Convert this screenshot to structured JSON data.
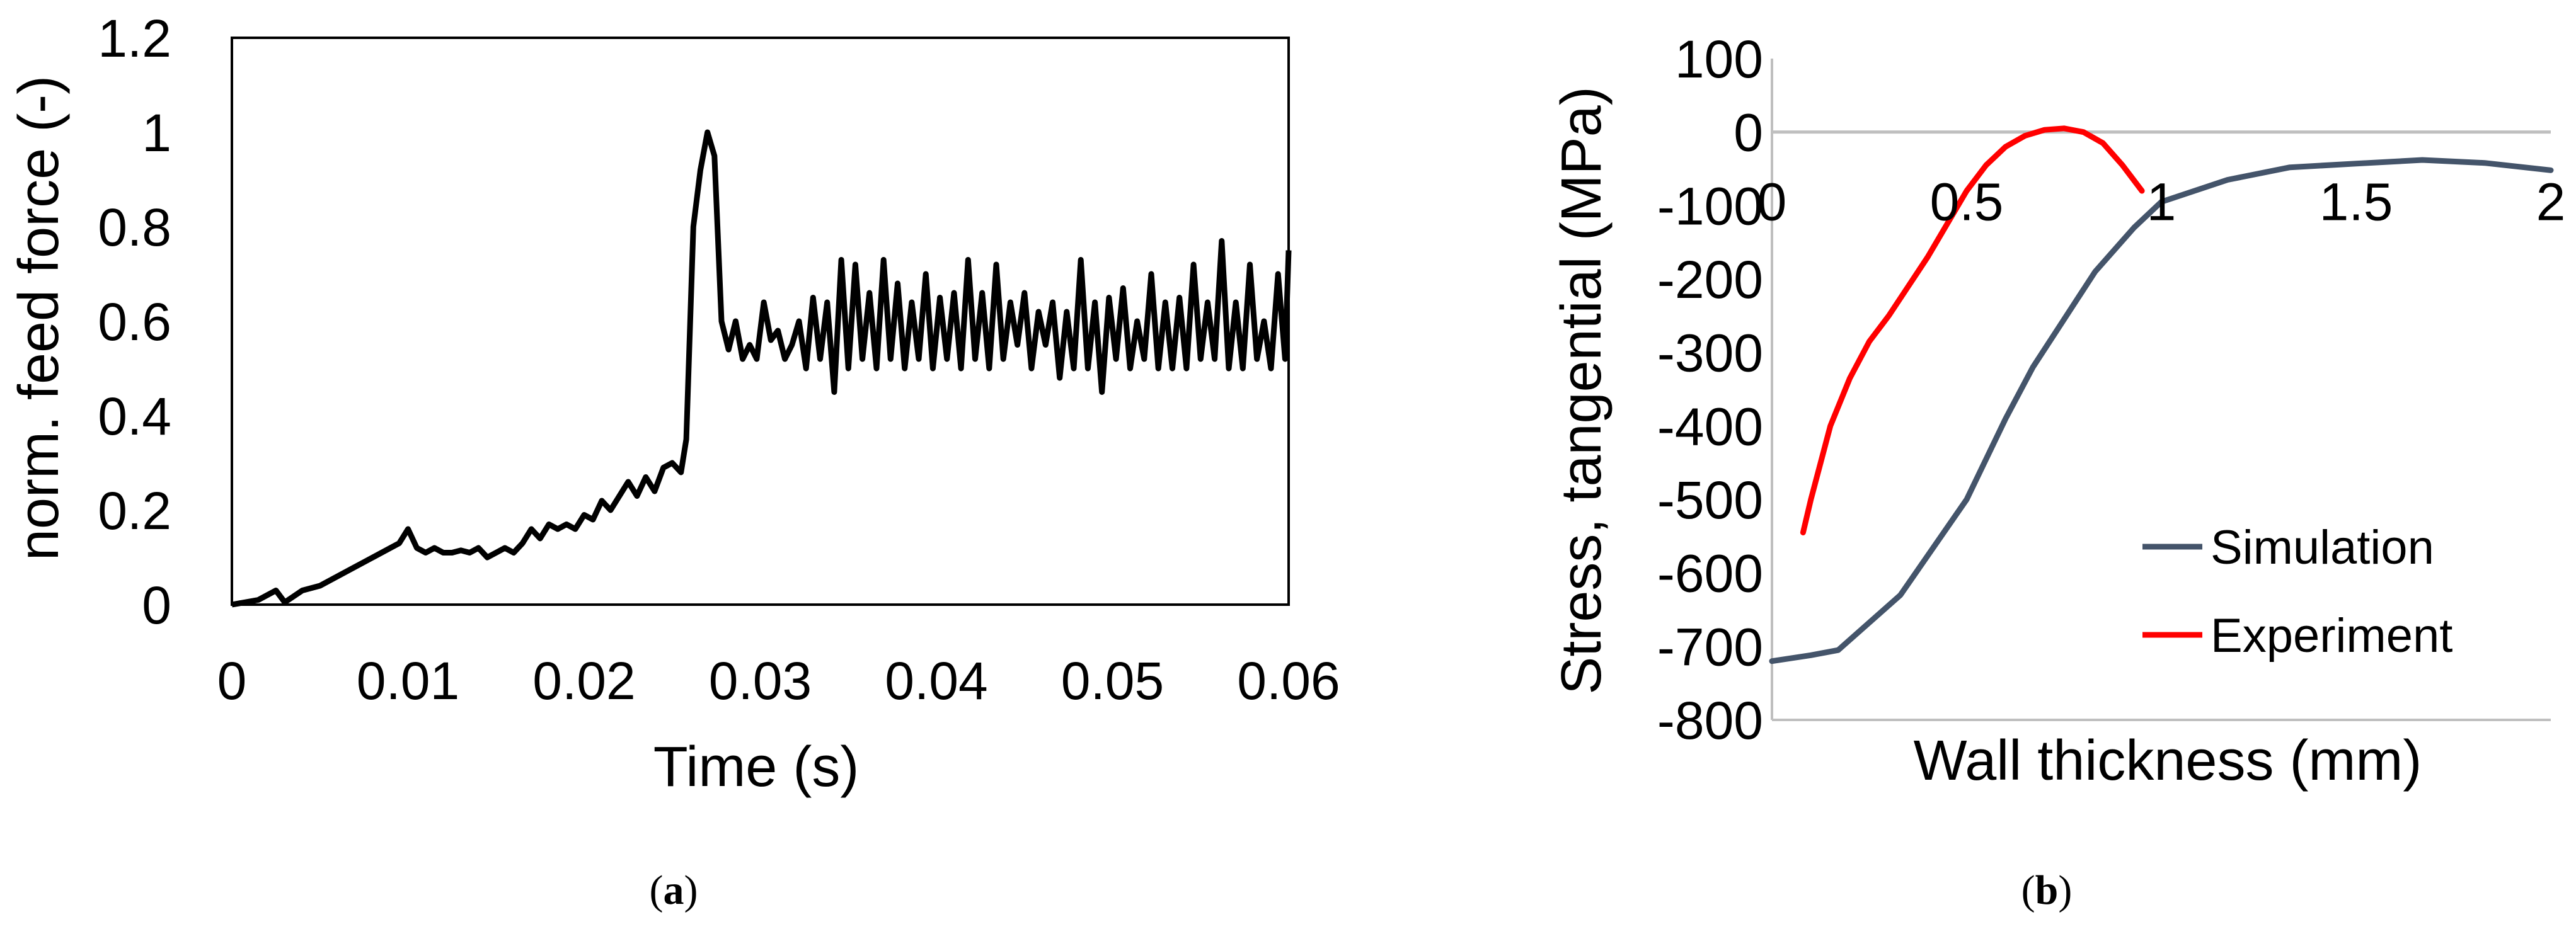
{
  "chart_data": [
    {
      "id": "a",
      "type": "line",
      "caption_open": "(",
      "caption_letter": "a",
      "caption_close": ")",
      "xlabel": "Time (s)",
      "ylabel": "norm. feed force (-)",
      "xlim": [
        0,
        0.06
      ],
      "ylim": [
        0,
        1.2
      ],
      "xticks": [
        "0",
        "0.01",
        "0.02",
        "0.03",
        "0.04",
        "0.05",
        "0.06"
      ],
      "yticks": [
        "0",
        "0.2",
        "0.4",
        "0.6",
        "0.8",
        "1",
        "1.2"
      ],
      "series": [
        {
          "color": "#000000",
          "x": [
            0,
            0.0015,
            0.0025,
            0.003,
            0.004,
            0.005,
            0.006,
            0.007,
            0.008,
            0.009,
            0.0095,
            0.01,
            0.0105,
            0.011,
            0.0115,
            0.012,
            0.0125,
            0.013,
            0.0135,
            0.014,
            0.0145,
            0.015,
            0.0155,
            0.016,
            0.0165,
            0.017,
            0.0175,
            0.018,
            0.0185,
            0.019,
            0.0195,
            0.02,
            0.0205,
            0.021,
            0.0215,
            0.022,
            0.0225,
            0.023,
            0.0235,
            0.024,
            0.0245,
            0.025,
            0.0255,
            0.0258,
            0.0262,
            0.0266,
            0.027,
            0.0274,
            0.0278,
            0.0282,
            0.0286,
            0.029,
            0.0294,
            0.0298,
            0.0302,
            0.0306,
            0.031,
            0.0314,
            0.0318,
            0.0322,
            0.0326,
            0.033,
            0.0334,
            0.0338,
            0.0342,
            0.0346,
            0.035,
            0.0354,
            0.0358,
            0.0362,
            0.0366,
            0.037,
            0.0374,
            0.0378,
            0.0382,
            0.0386,
            0.039,
            0.0394,
            0.0398,
            0.0402,
            0.0406,
            0.041,
            0.0414,
            0.0418,
            0.0422,
            0.0426,
            0.043,
            0.0434,
            0.0438,
            0.0442,
            0.0446,
            0.045,
            0.0454,
            0.0458,
            0.0462,
            0.0466,
            0.047,
            0.0474,
            0.0478,
            0.0482,
            0.0486,
            0.049,
            0.0494,
            0.0498,
            0.0502,
            0.0506,
            0.051,
            0.0514,
            0.0518,
            0.0522,
            0.0526,
            0.053,
            0.0534,
            0.0538,
            0.0542,
            0.0546,
            0.055,
            0.0554,
            0.0558,
            0.0562,
            0.0566,
            0.057,
            0.0574,
            0.0578,
            0.0582,
            0.0586,
            0.059,
            0.0594,
            0.0598,
            0.06
          ],
          "y": [
            0,
            0.01,
            0.03,
            0.005,
            0.03,
            0.04,
            0.06,
            0.08,
            0.1,
            0.12,
            0.13,
            0.16,
            0.12,
            0.11,
            0.12,
            0.11,
            0.11,
            0.115,
            0.11,
            0.12,
            0.1,
            0.11,
            0.12,
            0.11,
            0.13,
            0.16,
            0.14,
            0.17,
            0.16,
            0.17,
            0.16,
            0.19,
            0.18,
            0.22,
            0.2,
            0.23,
            0.26,
            0.23,
            0.27,
            0.24,
            0.29,
            0.3,
            0.28,
            0.35,
            0.8,
            0.92,
            1.0,
            0.95,
            0.6,
            0.54,
            0.6,
            0.52,
            0.55,
            0.52,
            0.64,
            0.56,
            0.58,
            0.52,
            0.55,
            0.6,
            0.5,
            0.65,
            0.52,
            0.64,
            0.45,
            0.73,
            0.5,
            0.72,
            0.52,
            0.66,
            0.5,
            0.73,
            0.52,
            0.68,
            0.5,
            0.64,
            0.52,
            0.7,
            0.5,
            0.65,
            0.52,
            0.66,
            0.5,
            0.73,
            0.52,
            0.66,
            0.5,
            0.72,
            0.52,
            0.64,
            0.55,
            0.66,
            0.5,
            0.62,
            0.55,
            0.64,
            0.48,
            0.62,
            0.5,
            0.73,
            0.5,
            0.64,
            0.45,
            0.65,
            0.52,
            0.67,
            0.5,
            0.6,
            0.52,
            0.7,
            0.5,
            0.64,
            0.5,
            0.65,
            0.5,
            0.72,
            0.52,
            0.64,
            0.52,
            0.77,
            0.5,
            0.64,
            0.5,
            0.72,
            0.52,
            0.6,
            0.5,
            0.7,
            0.52,
            0.75
          ]
        }
      ]
    },
    {
      "id": "b",
      "type": "line",
      "caption_open": "(",
      "caption_letter": "b",
      "caption_close": ")",
      "xlabel": "Wall thickness (mm)",
      "ylabel": "Stress, tangential (MPa)",
      "xlim": [
        0,
        2
      ],
      "ylim": [
        -800,
        100
      ],
      "xticks": [
        "0",
        "0.5",
        "1",
        "1.5",
        "2"
      ],
      "xtick_values": [
        0,
        0.5,
        1,
        1.5,
        2
      ],
      "yticks": [
        "100",
        "0",
        "-100",
        "-200",
        "-300",
        "-400",
        "-500",
        "-600",
        "-700",
        "-800"
      ],
      "ytick_values": [
        100,
        0,
        -100,
        -200,
        -300,
        -400,
        -500,
        -600,
        -700,
        -800
      ],
      "zero_line_color": "#bfbfbf",
      "legend_position": "bottom-right",
      "series": [
        {
          "name": "Simulation",
          "color": "#44546a",
          "x": [
            0,
            0.1,
            0.17,
            0.33,
            0.5,
            0.6,
            0.67,
            0.83,
            0.93,
            1.0,
            1.17,
            1.33,
            1.5,
            1.67,
            1.83,
            2.0
          ],
          "y": [
            -720,
            -712,
            -705,
            -630,
            -500,
            -390,
            -320,
            -190,
            -130,
            -95,
            -65,
            -48,
            -43,
            -38,
            -42,
            -52
          ]
        },
        {
          "name": "Experiment",
          "color": "#ff0000",
          "x": [
            0.08,
            0.1,
            0.15,
            0.2,
            0.25,
            0.3,
            0.35,
            0.4,
            0.45,
            0.5,
            0.55,
            0.6,
            0.65,
            0.7,
            0.75,
            0.8,
            0.85,
            0.9,
            0.95
          ],
          "y": [
            -545,
            -500,
            -400,
            -335,
            -285,
            -250,
            -210,
            -170,
            -125,
            -80,
            -45,
            -20,
            -5,
            3,
            5,
            0,
            -15,
            -45,
            -80
          ]
        }
      ]
    }
  ]
}
